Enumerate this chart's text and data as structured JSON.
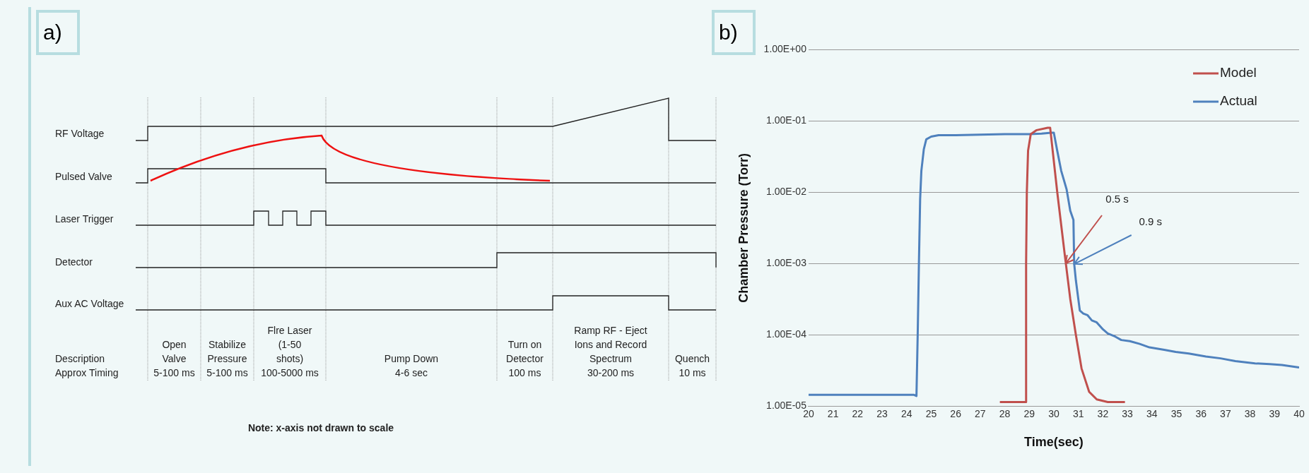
{
  "chart_data": [
    {
      "type": "other",
      "title": "a)",
      "annotations": [
        "RF Voltage",
        "Pulsed Valve",
        "Laser Trigger",
        "Detector",
        "Aux AC Voltage",
        "Description",
        "Approx Timing",
        "Open\nValve\n5-100 ms",
        "Stabilize\nPressure\n5-100 ms",
        "Flre Laser\n(1-50\nshots)\n100-5000 ms",
        "Pump Down\n4-6 sec",
        "Turn on\nDetector\n100 ms",
        "Ramp RF - Eject\nIons and Record\nSpectrum\n30-200 ms",
        "Quench\n10 ms",
        "Note: x-axis not drawn to scale"
      ]
    },
    {
      "type": "line",
      "title": "b)",
      "xlabel": "Time(sec)",
      "ylabel": "Chamber Pressure (Torr)",
      "log": "y",
      "grid": "y",
      "legend": "top right",
      "marker": "none",
      "xlim": [
        20,
        40
      ],
      "xticks": [
        20,
        21,
        22,
        23,
        24,
        25,
        26,
        27,
        28,
        29,
        30,
        31,
        32,
        33,
        34,
        35,
        36,
        37,
        38,
        39,
        40
      ],
      "ylim": [
        1e-05,
        1
      ],
      "yticks": [
        {
          "value": 1e-05,
          "label": "1.00E-05"
        },
        {
          "value": 0.0001,
          "label": "1.00E-04"
        },
        {
          "value": 0.001,
          "label": "1.00E-03"
        },
        {
          "value": 0.01,
          "label": "1.00E-02"
        },
        {
          "value": 0.1,
          "label": "1.00E-01"
        },
        {
          "value": 1,
          "label": "1.00E+00"
        }
      ],
      "series": [
        {
          "name": "Model",
          "color": "#c0504d",
          "x": [
            27.8,
            28.85,
            28.87,
            28.9,
            28.95,
            29.06,
            29.3,
            29.75,
            29.85,
            30.14,
            30.45,
            30.67,
            30.9,
            31.13,
            31.44,
            31.75,
            32.2,
            32.9
          ],
          "values": [
            1.15e-05,
            1.15e-05,
            0.001,
            0.01,
            0.038,
            0.065,
            0.074,
            0.08,
            0.08,
            0.01,
            0.0013,
            0.00032,
            0.0001,
            3.4e-05,
            1.6e-05,
            1.25e-05,
            1.15e-05,
            1.15e-05
          ]
        },
        {
          "name": "Actual",
          "color": "#4f81bd",
          "x": [
            20,
            21,
            22,
            23,
            24,
            24.3,
            24.4,
            24.45,
            24.5,
            24.55,
            24.6,
            24.7,
            24.8,
            25,
            25.3,
            26,
            27,
            28,
            29,
            29.5,
            29.9,
            30,
            30.14,
            30.3,
            30.52,
            30.67,
            30.8,
            30.83,
            30.9,
            31.06,
            31.2,
            31.37,
            31.55,
            31.75,
            32,
            32.2,
            32.5,
            32.75,
            33.1,
            33.5,
            33.9,
            34.5,
            34.97,
            35.5,
            36.2,
            36.8,
            37.4,
            38.2,
            38.8,
            39.3,
            40
          ],
          "values": [
            1.45e-05,
            1.45e-05,
            1.45e-05,
            1.45e-05,
            1.45e-05,
            1.45e-05,
            1.4e-05,
            0.0001,
            0.001,
            0.008,
            0.02,
            0.04,
            0.055,
            0.06,
            0.063,
            0.063,
            0.064,
            0.065,
            0.065,
            0.066,
            0.068,
            0.068,
            0.038,
            0.02,
            0.011,
            0.0055,
            0.0041,
            0.001,
            0.00058,
            0.00022,
            0.0002,
            0.00019,
            0.00016,
            0.00015,
            0.00012,
            0.000105,
            9.5e-05,
            8.5e-05,
            8.2e-05,
            7.5e-05,
            6.7e-05,
            6.2e-05,
            5.8e-05,
            5.5e-05,
            5e-05,
            4.7e-05,
            4.3e-05,
            4e-05,
            3.9e-05,
            3.8e-05,
            3.5e-05
          ]
        }
      ],
      "annotations": [
        {
          "text": "0.5 s",
          "x": 30.5,
          "y": 0.001
        },
        {
          "text": "0.9 s",
          "x": 30.85,
          "y": 0.001
        }
      ]
    }
  ]
}
